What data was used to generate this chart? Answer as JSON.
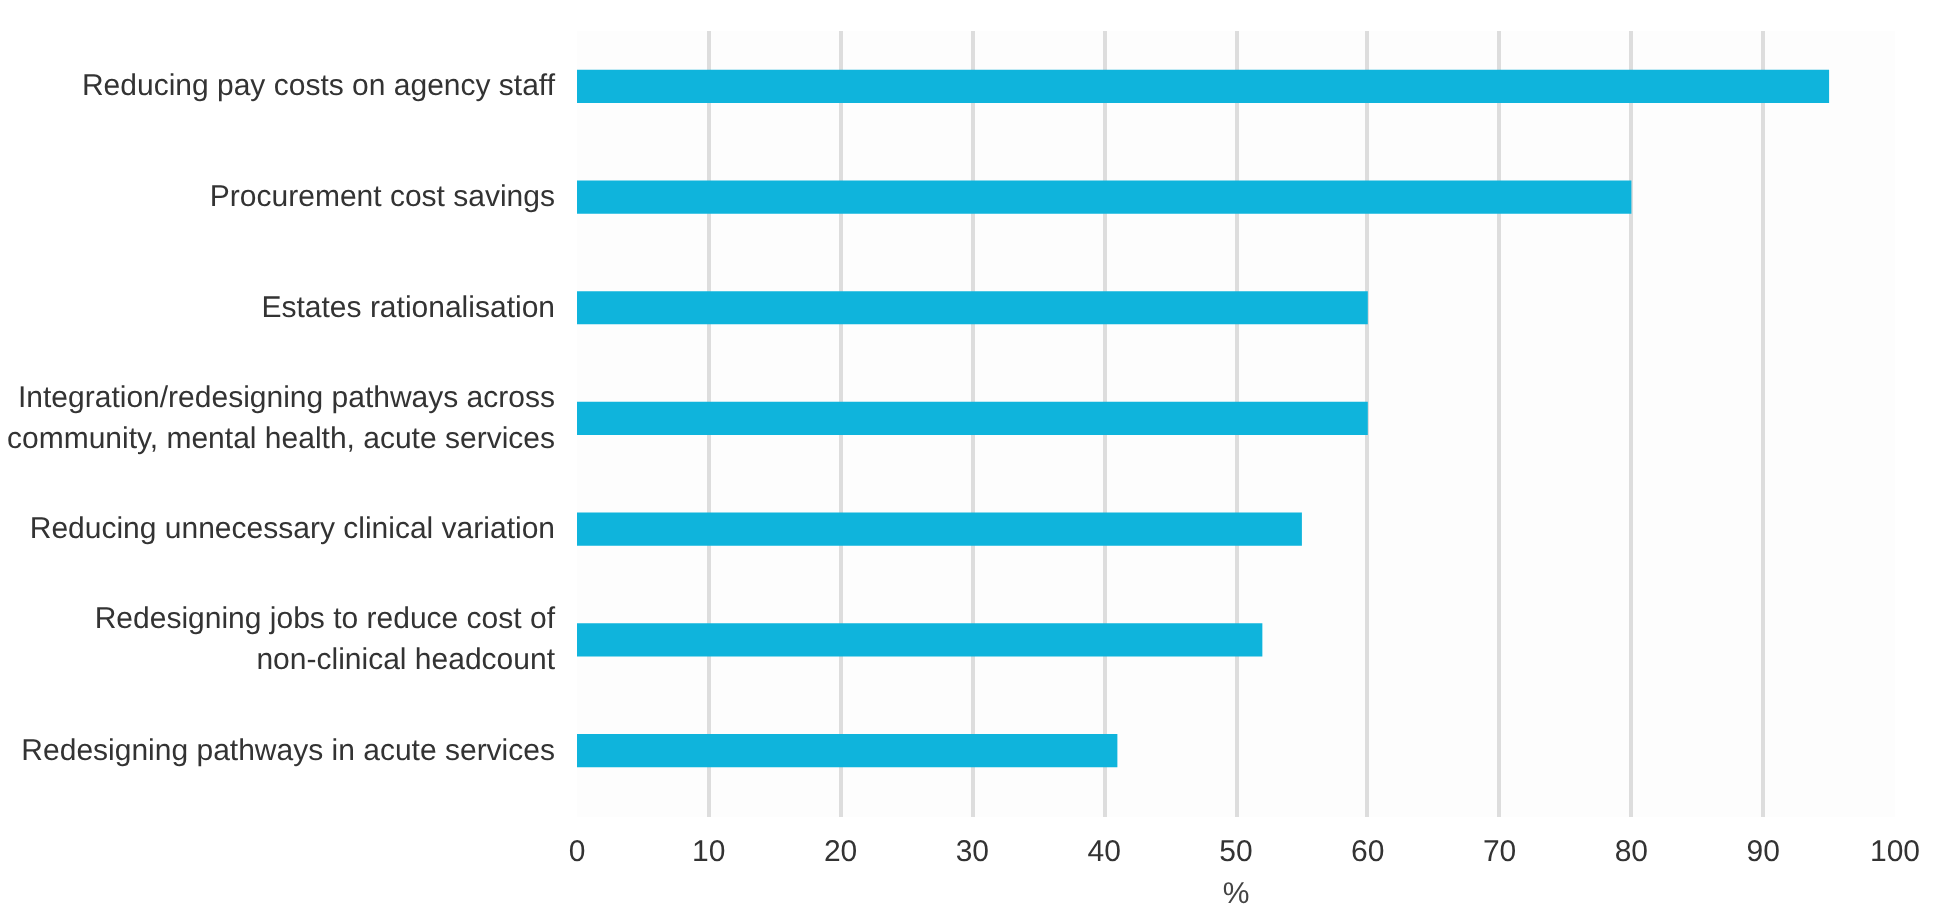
{
  "chart_data": {
    "type": "bar",
    "orientation": "horizontal",
    "xlabel": "%",
    "categories": [
      "Reducing pay costs on agency staff",
      "Procurement cost savings",
      "Estates rationalisation",
      "Integration/redesigning pathways across\ncommunity, mental health, acute services",
      "Reducing unnecessary clinical variation",
      "Redesigning jobs to reduce cost of\nnon-clinical headcount",
      "Redesigning pathways in acute services"
    ],
    "values": [
      95,
      80,
      60,
      60,
      55,
      52,
      41
    ],
    "color": "#0fb4dc",
    "xlim": [
      0,
      100
    ],
    "xticks": [
      0,
      10,
      20,
      30,
      40,
      50,
      60,
      70,
      80,
      90,
      100
    ],
    "grid": "x"
  }
}
